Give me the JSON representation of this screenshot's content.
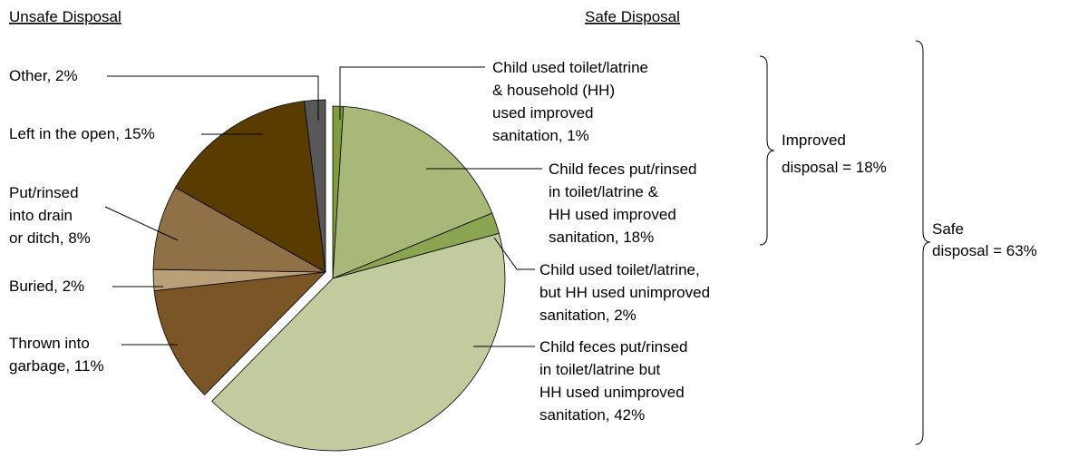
{
  "chart_data": {
    "type": "pie",
    "headers": [
      "Unsafe Disposal",
      "Safe Disposal"
    ],
    "values": [
      1,
      18,
      2,
      42,
      11,
      2,
      8,
      15,
      2
    ],
    "value_labels": [
      [
        "Child used toilet/latrine",
        "& household (HH)",
        "used improved",
        "sanitation, 1%"
      ],
      [
        "Child feces put/rinsed",
        "in toilet/latrine &",
        "HH used improved",
        "sanitation, 18%"
      ],
      [
        "Child used toilet/latrine,",
        "but HH used unimproved",
        "sanitation, 2%"
      ],
      [
        "Child feces put/rinsed",
        "in toilet/latrine but",
        "HH used unimproved",
        "sanitation, 42%"
      ],
      [
        "Thrown into",
        "garbage, 11%"
      ],
      [
        "Buried, 2%"
      ],
      [
        "Put/rinsed",
        "into drain",
        "or ditch, 8%"
      ],
      [
        "Left in the open, 15%"
      ],
      [
        "Other, 2%"
      ]
    ],
    "colors": [
      "#7f9c3e",
      "#a8b879",
      "#8ba552",
      "#c2cb9d",
      "#7a5626",
      "#b9a078",
      "#8f7047",
      "#5a3b00",
      "#585858"
    ],
    "annotations": [
      [
        "Improved",
        "disposal = 18%"
      ],
      [
        "Safe",
        "disposal = 63%"
      ]
    ]
  }
}
